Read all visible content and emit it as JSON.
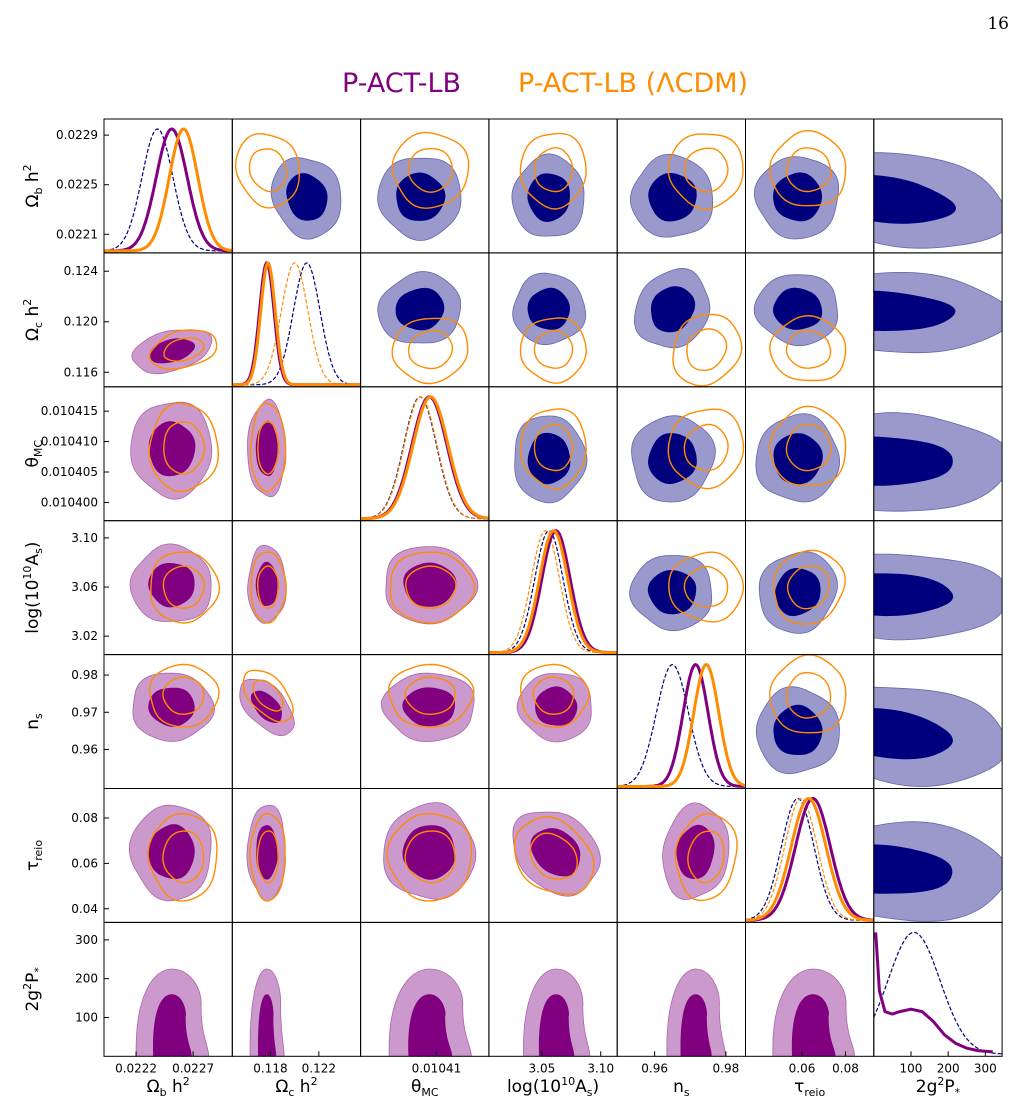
{
  "page_number": "16",
  "legend": [
    {
      "label": "P-ACT-LB",
      "color": "#800080"
    },
    {
      "label": "P-ACT-LB (ΛCDM)",
      "color": "#ff8c00"
    }
  ],
  "colors": {
    "navy": "#00007f",
    "navy_light": "#9999cc",
    "purple": "#800080",
    "purple_light": "#cc99cc",
    "orange": "#ff8c00"
  },
  "chart_data": {
    "type": "triangle",
    "parameters": [
      {
        "name": "Omega_b h^2",
        "label": "Ω<tspan font-size=\"11\" dy=\"4\">b</tspan><tspan dy=\"-4\"> </tspan>h<tspan font-size=\"11\" dy=\"-7\">2</tspan>",
        "range": [
          0.02195,
          0.02303
        ],
        "ticks_y": [
          0.0221,
          0.0225,
          0.0229
        ],
        "ticklabels_y": [
          "0.0221",
          "0.0225",
          "0.0229"
        ],
        "ticks_x": [
          0.02222,
          0.0227
        ],
        "ticklabels_x": [
          "0.0222",
          "0.0227"
        ]
      },
      {
        "name": "Omega_c h^2",
        "label": "Ω<tspan font-size=\"11\" dy=\"4\">c</tspan><tspan dy=\"-4\"> </tspan>h<tspan font-size=\"11\" dy=\"-7\">2</tspan>",
        "range": [
          0.11485,
          0.12545
        ],
        "ticks_y": [
          0.116,
          0.12,
          0.124
        ],
        "ticklabels_y": [
          "0.116",
          "0.120",
          "0.124"
        ],
        "ticks_x": [
          0.118,
          0.122
        ],
        "ticklabels_x": [
          "0.118",
          "0.122"
        ]
      },
      {
        "name": "theta_MC",
        "label": "θ<tspan font-size=\"11\" dy=\"4\">MC</tspan>",
        "range": [
          0.010397,
          0.010419
        ],
        "ticks_y": [
          0.0104,
          0.010405,
          0.01041,
          0.010415
        ],
        "ticklabels_y": [
          "0.010400",
          "0.010405",
          "0.010410",
          "0.010415"
        ],
        "ticks_x": [
          0.01041
        ],
        "ticklabels_x": [
          "0.01041"
        ]
      },
      {
        "name": "log(10^10 A_s)",
        "label": "log(10<tspan font-size=\"11\" dy=\"-7\">10</tspan><tspan dy=\"7\">A</tspan><tspan font-size=\"11\" dy=\"4\">s</tspan><tspan dy=\"-4\">)</tspan>",
        "range": [
          3.005,
          3.114
        ],
        "ticks_y": [
          3.02,
          3.06,
          3.1
        ],
        "ticklabels_y": [
          "3.02",
          "3.06",
          "3.10"
        ],
        "ticks_x": [
          3.05,
          3.1
        ],
        "ticklabels_x": [
          "3.05",
          "3.10"
        ]
      },
      {
        "name": "n_s",
        "label": "n<tspan font-size=\"11\" dy=\"4\">s</tspan>",
        "range": [
          0.9495,
          0.9855
        ],
        "ticks_y": [
          0.96,
          0.97,
          0.98
        ],
        "ticklabels_y": [
          "0.96",
          "0.97",
          "0.98"
        ],
        "ticks_x": [
          0.96,
          0.98
        ],
        "ticklabels_x": [
          "0.96",
          "0.98"
        ]
      },
      {
        "name": "tau_reio",
        "label": "τ<tspan font-size=\"11\" dy=\"4\">reio</tspan>",
        "range": [
          0.034,
          0.093
        ],
        "ticks_y": [
          0.04,
          0.06,
          0.08
        ],
        "ticklabels_y": [
          "0.04",
          "0.06",
          "0.08"
        ],
        "ticks_x": [
          0.06,
          0.08
        ],
        "ticklabels_x": [
          "0.06",
          "0.08"
        ]
      },
      {
        "name": "2g^2 P_*",
        "label": "2g<tspan font-size=\"11\" dy=\"-7\">2</tspan><tspan dy=\"7\">P</tspan><tspan font-size=\"11\" dy=\"4\">*</tspan>",
        "range": [
          0,
          345
        ],
        "ticks_y": [
          100,
          200,
          300
        ],
        "ticklabels_y": [
          "100",
          "200",
          "300"
        ],
        "ticks_x": [
          100,
          200,
          300
        ],
        "ticklabels_x": [
          "100",
          "200",
          "300"
        ]
      }
    ],
    "posteriors": {
      "navy_dashed": {
        "means": [
          0.0224,
          0.121,
          0.0104072,
          3.056,
          0.965,
          0.058,
          108
        ],
        "sigmas": [
          0.00013,
          0.0011,
          2.8e-06,
          0.012,
          0.0045,
          0.0075,
          70
        ]
      },
      "orange_dashed": {
        "means": [
          null,
          0.12,
          0.0104073,
          3.053,
          null,
          0.0595,
          null
        ],
        "sigmas": [
          null,
          0.0011,
          2.8e-06,
          0.012,
          null,
          0.0075,
          null
        ]
      },
      "purple": {
        "means": [
          0.02252,
          0.1177,
          0.0104088,
          3.062,
          0.9715,
          0.065,
          null
        ],
        "sigmas": [
          0.00013,
          0.0006,
          3e-06,
          0.012,
          0.0035,
          0.008,
          null
        ]
      },
      "orange": {
        "means": [
          0.02262,
          0.1178,
          0.010409,
          3.06,
          0.9745,
          0.063,
          null
        ],
        "sigmas": [
          0.00012,
          0.0006,
          3e-06,
          0.012,
          0.0035,
          0.008,
          null
        ]
      }
    },
    "p_star_purple_curve": [
      [
        5,
        1.0
      ],
      [
        15,
        0.52
      ],
      [
        30,
        0.35
      ],
      [
        50,
        0.33
      ],
      [
        70,
        0.35
      ],
      [
        100,
        0.37
      ],
      [
        130,
        0.35
      ],
      [
        160,
        0.27
      ],
      [
        190,
        0.16
      ],
      [
        220,
        0.09
      ],
      [
        250,
        0.05
      ],
      [
        280,
        0.03
      ],
      [
        320,
        0.02
      ]
    ],
    "contours": {
      "upper_navy_centers": [
        [
          [
            0.1183,
            0.02245
          ],
          [
            0.0104072,
            0.02244
          ],
          [
            3.059,
            0.02244
          ],
          [
            0.969,
            0.02242
          ],
          [
            0.062,
            0.02244
          ],
          [
            60,
            0.02248
          ]
        ],
        [
          [
            0.0104072,
            0.1202
          ],
          [
            3.058,
            0.1201
          ],
          [
            0.967,
            0.1201
          ],
          [
            0.061,
            0.1201
          ],
          [
            80,
            0.1202
          ]
        ],
        [
          [
            3.057,
            0.0104073
          ],
          [
            0.969,
            0.0104073
          ],
          [
            0.061,
            0.0104073
          ],
          [
            60,
            0.0104074
          ]
        ],
        [
          [
            0.968,
            3.059
          ],
          [
            0.062,
            3.058
          ],
          [
            70,
            3.06
          ]
        ],
        [
          [
            0.06,
            0.965
          ],
          [
            80,
            0.9665
          ]
        ],
        [
          [
            100,
            0.062
          ]
        ]
      ]
    }
  }
}
